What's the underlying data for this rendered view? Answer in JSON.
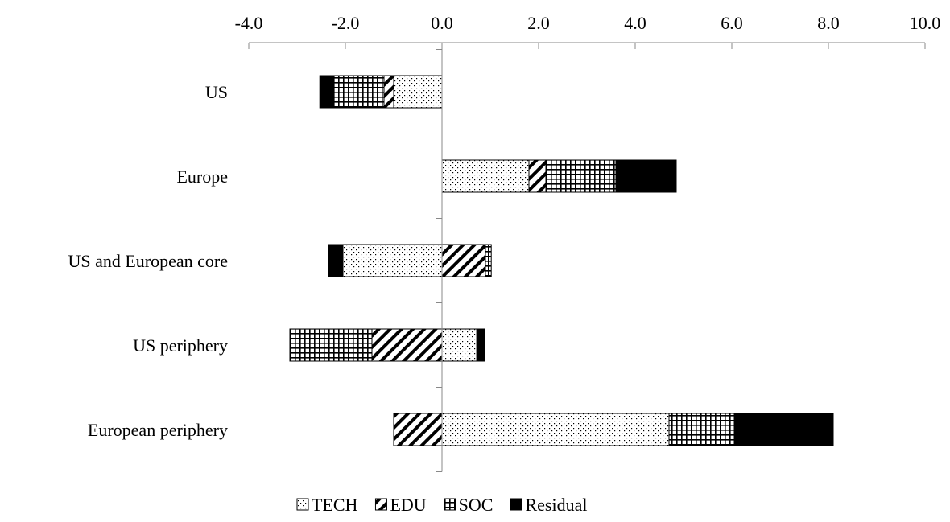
{
  "chart_data": {
    "type": "bar",
    "orientation": "horizontal",
    "stacked": true,
    "categories": [
      "US",
      "Europe",
      "US and European core",
      "US periphery",
      "European periphery"
    ],
    "xlim": [
      -4.0,
      10.0
    ],
    "xticks": [
      "-4.0",
      "-2.0",
      "0.0",
      "2.0",
      "4.0",
      "6.0",
      "8.0",
      "10.0"
    ],
    "xaxis_position": "top",
    "grid": false,
    "legend_position": "bottom",
    "series": [
      {
        "name": "TECH",
        "pattern": "dots",
        "values": [
          -1.0,
          1.8,
          -2.05,
          0.72,
          4.7
        ]
      },
      {
        "name": "EDU",
        "pattern": "diagonal",
        "values": [
          -0.2,
          0.35,
          0.9,
          -1.45,
          -1.0
        ]
      },
      {
        "name": "SOC",
        "pattern": "grid",
        "values": [
          -1.05,
          1.45,
          0.12,
          -1.7,
          1.35
        ]
      },
      {
        "name": "Residual",
        "pattern": "solid",
        "values": [
          -0.28,
          1.25,
          -0.3,
          0.16,
          2.05
        ]
      }
    ],
    "legend": [
      "TECH",
      "EDU",
      "SOC",
      "Residual"
    ]
  }
}
